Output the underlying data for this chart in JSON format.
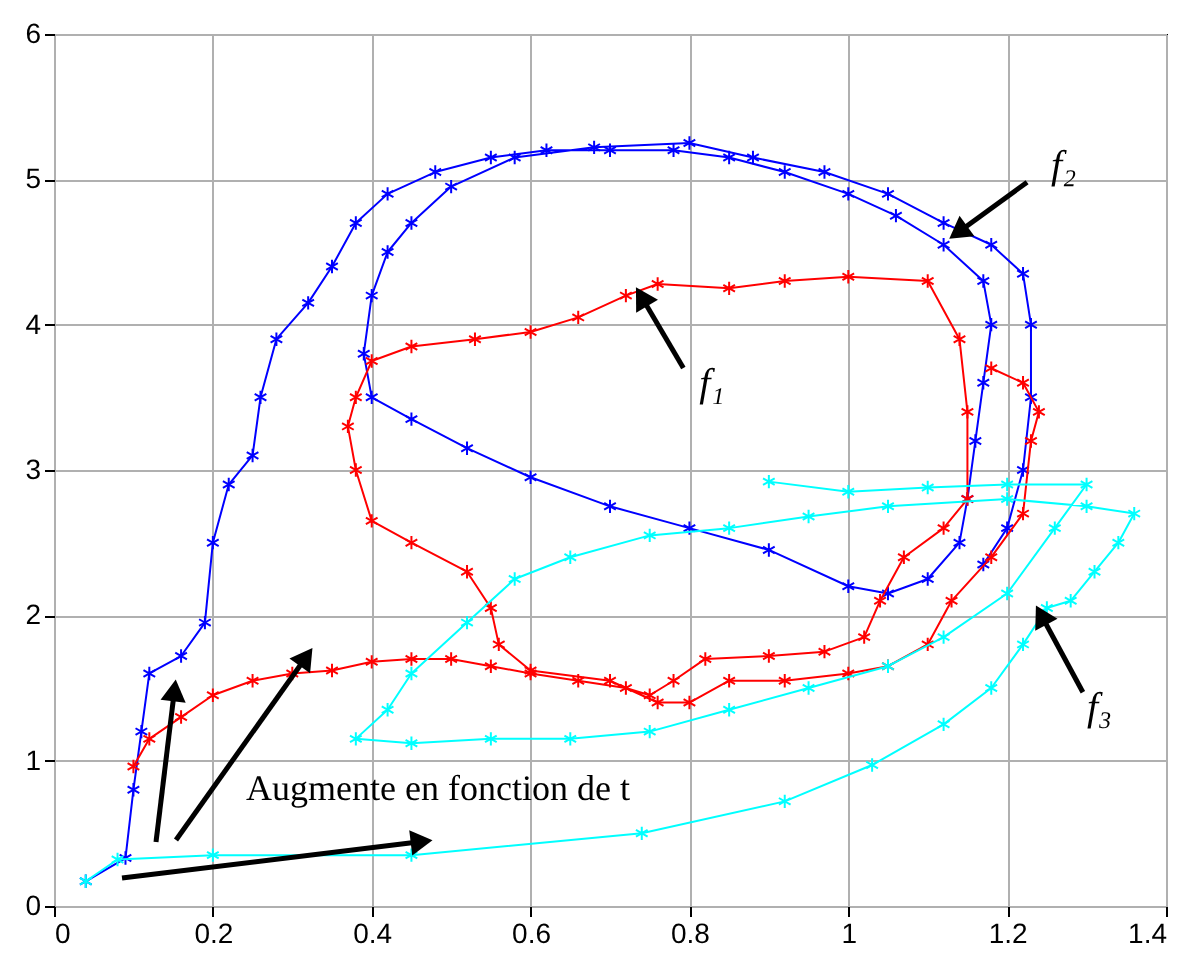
{
  "chart_data": {
    "type": "line",
    "marker": "cross",
    "grid": true,
    "xlim": [
      0,
      1.4
    ],
    "ylim": [
      0,
      6
    ],
    "xticks": [
      0,
      0.2,
      0.4,
      0.6,
      0.8,
      1,
      1.2,
      1.4
    ],
    "yticks": [
      0,
      1,
      2,
      3,
      4,
      5,
      6
    ],
    "series": [
      {
        "color": "#0000ff",
        "x": [
          0.04,
          0.09,
          0.1,
          0.11,
          0.12,
          0.16,
          0.19,
          0.2,
          0.22,
          0.25,
          0.26,
          0.28,
          0.32,
          0.35,
          0.38,
          0.42,
          0.48,
          0.55,
          0.62,
          0.7,
          0.78,
          0.85,
          0.92,
          1.0,
          1.06,
          1.12,
          1.17,
          1.18,
          1.17,
          1.16,
          1.15,
          1.14,
          1.1,
          1.05,
          1.0,
          0.9,
          0.8,
          0.7,
          0.6,
          0.52,
          0.45,
          0.4,
          0.39,
          0.4,
          0.42,
          0.45,
          0.5,
          0.58,
          0.68,
          0.8,
          0.88,
          0.97,
          1.05,
          1.12,
          1.18,
          1.22,
          1.23,
          1.23,
          1.22,
          1.2,
          1.17
        ],
        "values": [
          0.17,
          0.33,
          0.8,
          1.2,
          1.6,
          1.72,
          1.95,
          2.5,
          2.9,
          3.1,
          3.5,
          3.9,
          4.15,
          4.4,
          4.7,
          4.9,
          5.05,
          5.15,
          5.2,
          5.2,
          5.2,
          5.15,
          5.05,
          4.9,
          4.75,
          4.55,
          4.3,
          4.0,
          3.6,
          3.2,
          2.8,
          2.5,
          2.25,
          2.15,
          2.2,
          2.45,
          2.6,
          2.75,
          2.95,
          3.15,
          3.35,
          3.5,
          3.8,
          4.2,
          4.5,
          4.7,
          4.95,
          5.15,
          5.22,
          5.25,
          5.15,
          5.05,
          4.9,
          4.7,
          4.55,
          4.35,
          4.0,
          3.5,
          3.0,
          2.6,
          2.35
        ]
      },
      {
        "color": "#ff0000",
        "x": [
          0.1,
          0.12,
          0.16,
          0.2,
          0.25,
          0.3,
          0.35,
          0.4,
          0.45,
          0.5,
          0.55,
          0.6,
          0.66,
          0.72,
          0.75,
          0.78,
          0.82,
          0.9,
          0.97,
          1.02,
          1.04,
          1.07,
          1.12,
          1.15,
          1.15,
          1.14,
          1.1,
          1.0,
          0.92,
          0.85,
          0.76,
          0.72,
          0.66,
          0.6,
          0.53,
          0.45,
          0.4,
          0.38,
          0.37,
          0.38,
          0.4,
          0.45,
          0.52,
          0.55,
          0.56,
          0.6,
          0.7,
          0.76,
          0.8,
          0.85,
          0.92,
          1.0,
          1.05,
          1.1,
          1.13,
          1.18,
          1.22,
          1.23,
          1.24,
          1.22,
          1.18
        ],
        "values": [
          0.96,
          1.15,
          1.3,
          1.45,
          1.55,
          1.6,
          1.62,
          1.68,
          1.7,
          1.7,
          1.65,
          1.6,
          1.55,
          1.5,
          1.45,
          1.55,
          1.7,
          1.72,
          1.75,
          1.85,
          2.1,
          2.4,
          2.6,
          2.8,
          3.4,
          3.9,
          4.3,
          4.33,
          4.3,
          4.25,
          4.28,
          4.2,
          4.05,
          3.95,
          3.9,
          3.85,
          3.75,
          3.5,
          3.3,
          3.0,
          2.65,
          2.5,
          2.3,
          2.05,
          1.8,
          1.62,
          1.55,
          1.4,
          1.4,
          1.55,
          1.55,
          1.6,
          1.65,
          1.8,
          2.1,
          2.4,
          2.7,
          3.2,
          3.4,
          3.6,
          3.7
        ]
      },
      {
        "color": "#00ffff",
        "x": [
          0.04,
          0.08,
          0.2,
          0.45,
          0.74,
          0.92,
          1.03,
          1.12,
          1.18,
          1.22,
          1.25,
          1.28,
          1.31,
          1.34,
          1.36,
          1.3,
          1.2,
          1.05,
          0.95,
          0.85,
          0.75,
          0.65,
          0.58,
          0.52,
          0.45,
          0.42,
          0.38,
          0.45,
          0.55,
          0.65,
          0.75,
          0.85,
          0.95,
          1.05,
          1.12,
          1.2,
          1.26,
          1.3,
          1.2,
          1.1,
          1.0,
          0.9
        ],
        "values": [
          0.17,
          0.32,
          0.35,
          0.35,
          0.5,
          0.72,
          0.97,
          1.25,
          1.5,
          1.8,
          2.05,
          2.1,
          2.3,
          2.5,
          2.7,
          2.75,
          2.8,
          2.75,
          2.68,
          2.6,
          2.55,
          2.4,
          2.25,
          1.95,
          1.6,
          1.35,
          1.15,
          1.12,
          1.15,
          1.15,
          1.2,
          1.35,
          1.5,
          1.65,
          1.85,
          2.15,
          2.6,
          2.9,
          2.9,
          2.88,
          2.85,
          2.92
        ]
      }
    ],
    "annotations": [
      {
        "text": "f₁",
        "x": 0.742,
        "y": 4.17
      },
      {
        "text": "f₂",
        "x": 1.142,
        "y": 4.65
      },
      {
        "text": "f₃",
        "x": 1.245,
        "y": 1.98
      },
      "Augmente en fonction de t"
    ]
  }
}
